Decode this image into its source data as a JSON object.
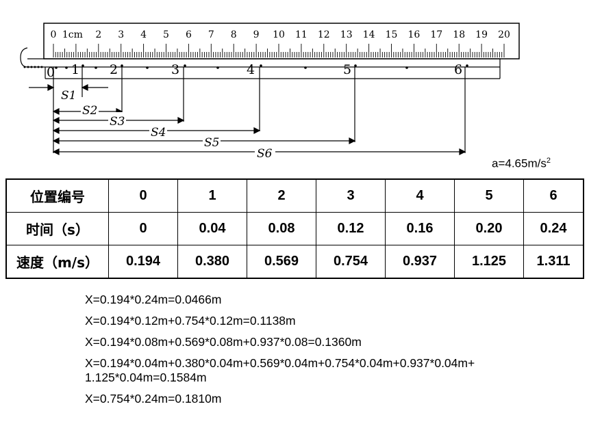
{
  "figure": {
    "ruler_ticks": [
      "0",
      "1cm",
      "2",
      "3",
      "4",
      "5",
      "6",
      "7",
      "8",
      "9",
      "10",
      "11",
      "12",
      "13",
      "14",
      "15",
      "16",
      "17",
      "18",
      "19",
      "20"
    ],
    "position_labels": [
      "0",
      "1",
      "2",
      "3",
      "4",
      "5",
      "6"
    ],
    "s_labels": [
      "S1",
      "S2",
      "S3",
      "S4",
      "S5",
      "S6"
    ]
  },
  "acceleration": {
    "text": "a=4.65m/s",
    "exp": "2"
  },
  "table": {
    "rows": [
      {
        "header": "位置编号",
        "cells": [
          "0",
          "1",
          "2",
          "3",
          "4",
          "5",
          "6"
        ]
      },
      {
        "header": "时间（s）",
        "cells": [
          "0",
          "0.04",
          "0.08",
          "0.12",
          "0.16",
          "0.20",
          "0.24"
        ]
      },
      {
        "header": "速度（m/s）",
        "cells": [
          "0.194",
          "0.380",
          "0.569",
          "0.754",
          "0.937",
          "1.125",
          "1.311"
        ]
      }
    ]
  },
  "calculations": [
    "X=0.194*0.24m=0.0466m",
    "X=0.194*0.12m+0.754*0.12m=0.1138m",
    "X=0.194*0.08m+0.569*0.08m+0.937*0.08=0.1360m",
    "X=0.194*0.04m+0.380*0.04m+0.569*0.04m+0.754*0.04m+0.937*0.04m+ 1.125*0.04m=0.1584m",
    "X=0.754*0.24m=0.1810m"
  ]
}
